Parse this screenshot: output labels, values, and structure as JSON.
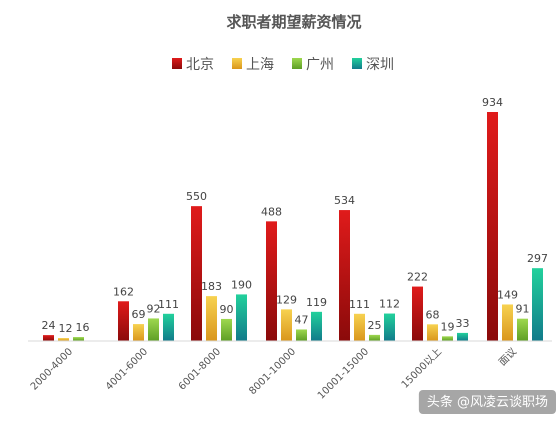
{
  "chart_data": {
    "type": "bar",
    "title": "求职者期望薪资情况",
    "categories": [
      "2000-4000",
      "4001-6000",
      "6001-8000",
      "8001-10000",
      "10001-15000",
      "15000以上",
      "面议"
    ],
    "series": [
      {
        "name": "北京",
        "color": "#cc1111",
        "values": [
          24,
          162,
          550,
          488,
          534,
          222,
          934
        ]
      },
      {
        "name": "上海",
        "color": "#e8b830",
        "values": [
          12,
          69,
          183,
          129,
          111,
          68,
          149
        ]
      },
      {
        "name": "广州",
        "color": "#8cc63e",
        "values": [
          16,
          92,
          90,
          47,
          25,
          19,
          91
        ]
      },
      {
        "name": "深圳",
        "color": "#1ab98a",
        "values": [
          null,
          111,
          190,
          119,
          112,
          33,
          297
        ]
      }
    ],
    "ylim": [
      0,
      934
    ],
    "grid": false,
    "legend": "top"
  },
  "watermark": "头条 @风凌云谈职场"
}
